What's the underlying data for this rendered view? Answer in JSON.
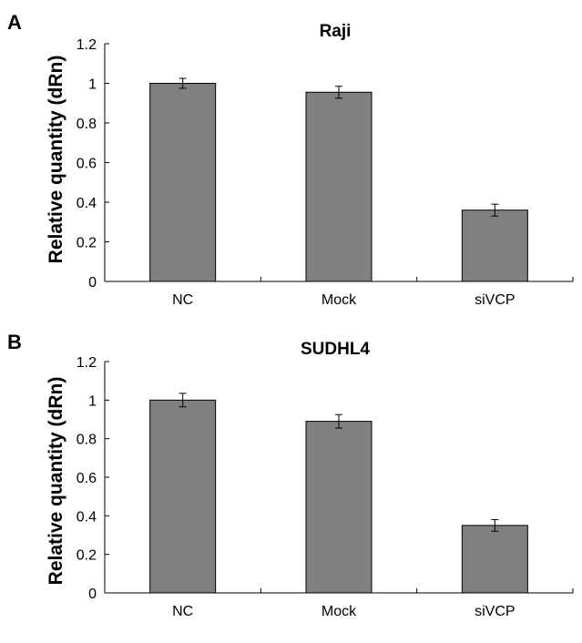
{
  "chart_data": [
    {
      "type": "bar",
      "panel": "A",
      "title": "Raji",
      "xlabel": "",
      "ylabel": "Relative quantity (dRn)",
      "ylim": [
        0,
        1.2
      ],
      "yticks": [
        "0",
        "0.2",
        "0.4",
        "0.6",
        "0.8",
        "1",
        "1.2"
      ],
      "categories": [
        "NC",
        "Mock",
        "siVCP"
      ],
      "values": [
        1.0,
        0.955,
        0.36
      ],
      "errors": [
        0.025,
        0.03,
        0.03
      ],
      "bar_color": "#808080",
      "grid": false
    },
    {
      "type": "bar",
      "panel": "B",
      "title": "SUDHL4",
      "xlabel": "",
      "ylabel": "Relative quantity (dRn)",
      "ylim": [
        0,
        1.2
      ],
      "yticks": [
        "0",
        "0.2",
        "0.4",
        "0.6",
        "0.8",
        "1",
        "1.2"
      ],
      "categories": [
        "NC",
        "Mock",
        "siVCP"
      ],
      "values": [
        1.0,
        0.89,
        0.35
      ],
      "errors": [
        0.035,
        0.035,
        0.03
      ],
      "bar_color": "#808080",
      "grid": false
    }
  ]
}
